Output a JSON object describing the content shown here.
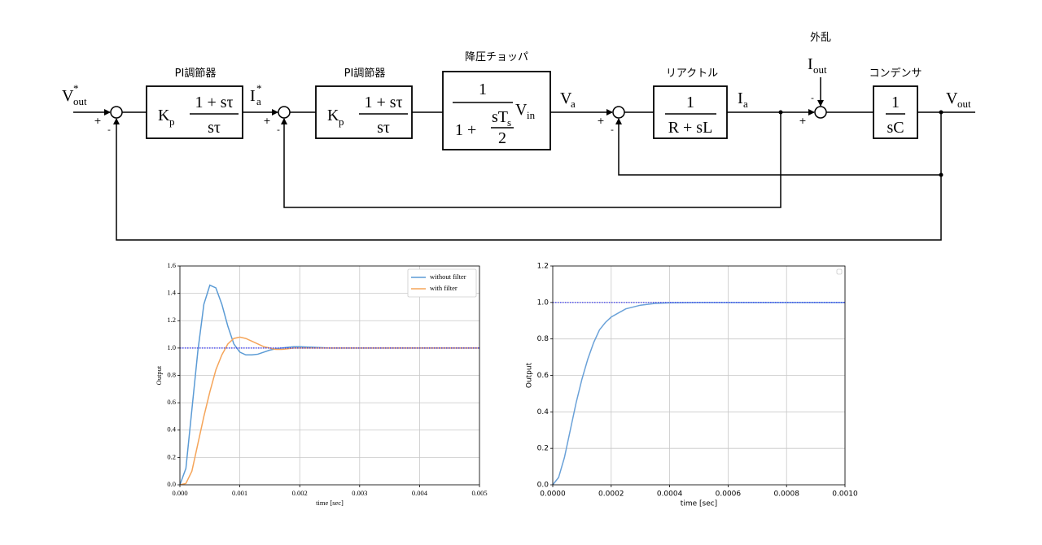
{
  "diagram": {
    "blocks": [
      {
        "label": "PI調節器",
        "gain": {
          "base": "K",
          "sub": "p"
        },
        "numerator": "1 + sτ",
        "denominator": "sτ"
      },
      {
        "label": "PI調節器",
        "gain": {
          "base": "K",
          "sub": "p"
        },
        "numerator": "1 + sτ",
        "denominator": "sτ"
      },
      {
        "label": "降圧チョッパ",
        "numerator": "1",
        "denominator": "1 +",
        "inner_numerator": {
          "base": "sT",
          "sub": "s"
        },
        "inner_denominator": "2",
        "gain": {
          "base": "V",
          "sub": "in"
        }
      },
      {
        "label": "リアクトル",
        "numerator": "1",
        "denominator": "R + sL"
      },
      {
        "label": "コンデンサ",
        "numerator": "1",
        "denominator": "sC"
      }
    ],
    "signals": {
      "reference": {
        "base": "V",
        "sup": "*",
        "sub": "out"
      },
      "current_reference": {
        "base": "I",
        "sup": "*",
        "sub": "a"
      },
      "voltage": {
        "base": "V",
        "sub": "a"
      },
      "current": {
        "base": "I",
        "sub": "a"
      },
      "disturbance_label": "外乱",
      "disturbance": {
        "base": "I",
        "sub": "out"
      },
      "output": {
        "base": "V",
        "sub": "out"
      }
    },
    "summing_points": [
      {
        "plus": "+",
        "minus": "-"
      },
      {
        "plus": "+",
        "minus": "-"
      },
      {
        "plus": "+",
        "minus": "-"
      },
      {
        "plus": "+",
        "minus": "-"
      }
    ]
  },
  "chart_data": [
    {
      "type": "line",
      "xlabel": "time [sec]",
      "ylabel": "Output",
      "grid": true,
      "legend": "upper right",
      "x": [
        0,
        0.0001,
        0.0002,
        0.0003,
        0.0004,
        0.0005,
        0.0006,
        0.0007,
        0.0008,
        0.0009,
        0.001,
        0.0011,
        0.0012,
        0.0013,
        0.0014,
        0.0015,
        0.0016,
        0.0017,
        0.0018,
        0.0019,
        0.002,
        0.0025,
        0.003,
        0.004,
        0.005
      ],
      "series": [
        {
          "name": "without filter",
          "color": "#5b9bd5",
          "values": [
            0,
            0.12,
            0.55,
            0.98,
            1.32,
            1.46,
            1.44,
            1.32,
            1.16,
            1.03,
            0.97,
            0.95,
            0.95,
            0.955,
            0.97,
            0.985,
            0.995,
            1.0,
            1.005,
            1.01,
            1.01,
            1.0,
            1.0,
            1.0,
            1.0
          ]
        },
        {
          "name": "with filter",
          "color": "#f5a55a",
          "values": [
            0,
            0.01,
            0.1,
            0.3,
            0.5,
            0.68,
            0.84,
            0.95,
            1.03,
            1.07,
            1.08,
            1.07,
            1.05,
            1.03,
            1.01,
            1.0,
            0.99,
            0.99,
            0.995,
            1.0,
            1.0,
            1.0,
            1.0,
            1.0,
            1.0
          ]
        },
        {
          "color": "#2b2bf0",
          "style": "dotted",
          "values": [
            1,
            1,
            1,
            1,
            1,
            1,
            1,
            1,
            1,
            1,
            1,
            1,
            1,
            1,
            1,
            1,
            1,
            1,
            1,
            1,
            1,
            1,
            1,
            1,
            1
          ]
        }
      ],
      "xlim": [
        0,
        0.005
      ],
      "xticks": [
        {
          "value": 0,
          "label": "0.000"
        },
        {
          "value": 0.001,
          "label": "0.001"
        },
        {
          "value": 0.002,
          "label": "0.002"
        },
        {
          "value": 0.003,
          "label": "0.003"
        },
        {
          "value": 0.004,
          "label": "0.004"
        },
        {
          "value": 0.005,
          "label": "0.005"
        }
      ],
      "ylim": [
        0,
        1.6
      ],
      "yticks": [
        {
          "value": 0,
          "label": "0.0"
        },
        0.2,
        0.4,
        0.6,
        0.8,
        {
          "value": 1,
          "label": "1.0"
        },
        1.2,
        1.4,
        1.6
      ]
    },
    {
      "type": "line",
      "xlabel": "time [sec]",
      "ylabel": "Output",
      "grid": true,
      "legend": "upper right",
      "x": [
        0,
        2e-05,
        4e-05,
        6e-05,
        8e-05,
        0.0001,
        0.00012,
        0.00014,
        0.00016,
        0.00018,
        0.0002,
        0.00025,
        0.0003,
        0.00035,
        0.0004,
        0.0005,
        0.0006,
        0.0008,
        0.001
      ],
      "series": [
        {
          "color": "#6aa1d8",
          "values": [
            0,
            0.04,
            0.15,
            0.3,
            0.45,
            0.58,
            0.69,
            0.78,
            0.85,
            0.89,
            0.92,
            0.965,
            0.985,
            0.995,
            0.998,
            1.0,
            1.0,
            1.0,
            1.0
          ]
        },
        {
          "color": "#2b2bf0",
          "style": "dotted",
          "values": [
            1,
            1,
            1,
            1,
            1,
            1,
            1,
            1,
            1,
            1,
            1,
            1,
            1,
            1,
            1,
            1,
            1,
            1,
            1
          ]
        }
      ],
      "xlim": [
        0,
        0.001
      ],
      "xticks": [
        {
          "value": 0,
          "label": "0.0000"
        },
        {
          "value": 0.0002,
          "label": "0.0002"
        },
        {
          "value": 0.0004,
          "label": "0.0004"
        },
        {
          "value": 0.0006,
          "label": "0.0006"
        },
        {
          "value": 0.0008,
          "label": "0.0008"
        },
        {
          "value": 0.001,
          "label": "0.0010"
        }
      ],
      "ylim": [
        0,
        1.2
      ],
      "yticks": [
        {
          "value": 0,
          "label": "0.0"
        },
        0.2,
        0.4,
        0.6,
        0.8,
        {
          "value": 1,
          "label": "1.0"
        },
        1.2
      ]
    }
  ]
}
